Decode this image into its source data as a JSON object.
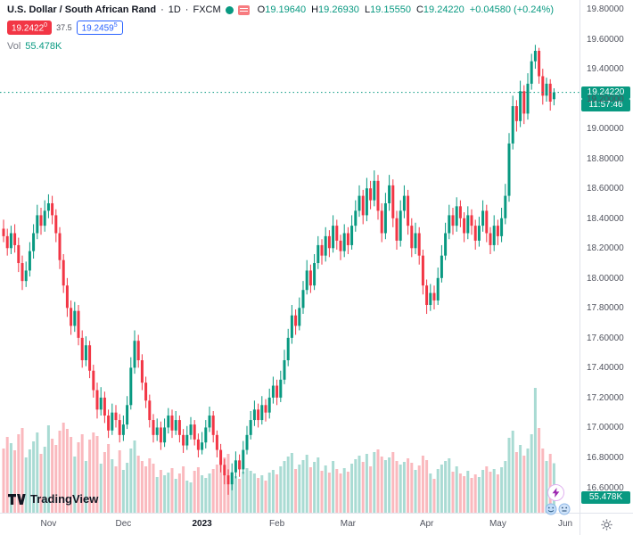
{
  "legend": {
    "symbol_title": "U.S. Dollar / South African Rand",
    "sep": "·",
    "interval": "1D",
    "exchange": "FXCM",
    "ohlc": {
      "o_key": "O",
      "o": "19.19640",
      "h_key": "H",
      "h": "19.26930",
      "l_key": "L",
      "l": "19.15550",
      "c_key": "C",
      "c": "19.24220",
      "change": "+0.04580 (+0.24%)"
    },
    "bid_main": "19.2422",
    "bid_sup": "0",
    "spread": "37.5",
    "ask_main": "19.2459",
    "ask_sup": "5",
    "vol_label": "Vol",
    "vol_value": "55.478K"
  },
  "badges": {
    "last_price": "19.24220",
    "countdown": "11:57:46",
    "volume": "55.478K"
  },
  "footer": {
    "logo_text": "TradingView"
  },
  "colors": {
    "up": "#089981",
    "down": "#f23645",
    "vol_opacity": 0.35,
    "last_line": "#089981",
    "badge_bg": "#089981",
    "bid_bg": "#f23645",
    "ask_blue": "#2962ff"
  },
  "price_axis": {
    "labels": [
      "19.80000",
      "19.60000",
      "19.40000",
      "19.20000",
      "19.00000",
      "18.80000",
      "18.60000",
      "18.40000",
      "18.20000",
      "18.00000",
      "17.80000",
      "17.60000",
      "17.40000",
      "17.20000",
      "17.00000",
      "16.80000",
      "16.60000"
    ]
  },
  "time_axis": {
    "ticks": [
      {
        "label": "Nov",
        "i": 12
      },
      {
        "label": "Dec",
        "i": 32
      },
      {
        "label": "2023",
        "i": 53,
        "year": true
      },
      {
        "label": "Feb",
        "i": 73
      },
      {
        "label": "Mar",
        "i": 92
      },
      {
        "label": "Apr",
        "i": 113
      },
      {
        "label": "May",
        "i": 132
      },
      {
        "label": "Jun",
        "i": 150
      }
    ]
  },
  "chart_data": {
    "type": "candlestick",
    "title": "U.S. Dollar / South African Rand",
    "interval": "1D",
    "exchange": "FXCM",
    "ylim": [
      16.43,
      19.86
    ],
    "last_close": 19.2422,
    "volume_unit": "K",
    "legend_position": "top-left",
    "candles_format": [
      "open",
      "high",
      "low",
      "close",
      "volume_K"
    ],
    "candles": [
      [
        18.33,
        18.39,
        18.24,
        18.28,
        72
      ],
      [
        18.28,
        18.33,
        18.15,
        18.2,
        85
      ],
      [
        18.2,
        18.35,
        18.16,
        18.3,
        78
      ],
      [
        18.3,
        18.36,
        18.17,
        18.22,
        70
      ],
      [
        18.22,
        18.27,
        18.04,
        18.1,
        88
      ],
      [
        18.1,
        18.15,
        17.92,
        17.98,
        95
      ],
      [
        17.98,
        18.11,
        17.94,
        18.05,
        62
      ],
      [
        18.05,
        18.24,
        18.01,
        18.18,
        71
      ],
      [
        18.18,
        18.36,
        18.13,
        18.3,
        80
      ],
      [
        18.3,
        18.49,
        18.26,
        18.42,
        90
      ],
      [
        18.42,
        18.47,
        18.29,
        18.35,
        66
      ],
      [
        18.35,
        18.52,
        18.31,
        18.45,
        74
      ],
      [
        18.45,
        18.56,
        18.4,
        18.5,
        98
      ],
      [
        18.5,
        18.55,
        18.36,
        18.42,
        83
      ],
      [
        18.42,
        18.46,
        18.24,
        18.3,
        76
      ],
      [
        18.3,
        18.34,
        18.06,
        18.12,
        92
      ],
      [
        18.12,
        18.16,
        17.9,
        17.95,
        101
      ],
      [
        17.95,
        18.0,
        17.74,
        17.8,
        94
      ],
      [
        17.8,
        17.85,
        17.62,
        17.68,
        85
      ],
      [
        17.68,
        17.84,
        17.64,
        17.78,
        63
      ],
      [
        17.78,
        17.82,
        17.55,
        17.6,
        79
      ],
      [
        17.6,
        17.65,
        17.4,
        17.45,
        88
      ],
      [
        17.45,
        17.61,
        17.41,
        17.55,
        58
      ],
      [
        17.55,
        17.58,
        17.33,
        17.38,
        82
      ],
      [
        17.38,
        17.42,
        17.2,
        17.25,
        90
      ],
      [
        17.25,
        17.3,
        17.06,
        17.12,
        86
      ],
      [
        17.12,
        17.27,
        17.08,
        17.2,
        55
      ],
      [
        17.2,
        17.24,
        17.03,
        17.08,
        68
      ],
      [
        17.08,
        17.12,
        16.93,
        16.98,
        77
      ],
      [
        16.98,
        17.16,
        16.95,
        17.1,
        60
      ],
      [
        17.1,
        17.15,
        17.0,
        17.05,
        52
      ],
      [
        17.05,
        17.09,
        16.9,
        16.95,
        70
      ],
      [
        16.95,
        17.08,
        16.91,
        17.02,
        48
      ],
      [
        17.02,
        17.21,
        16.99,
        17.15,
        56
      ],
      [
        17.15,
        17.47,
        17.12,
        17.4,
        72
      ],
      [
        17.4,
        17.65,
        17.36,
        17.58,
        81
      ],
      [
        17.58,
        17.62,
        17.4,
        17.45,
        64
      ],
      [
        17.45,
        17.49,
        17.25,
        17.3,
        58
      ],
      [
        17.3,
        17.34,
        17.13,
        17.18,
        52
      ],
      [
        17.18,
        17.22,
        17.0,
        17.05,
        61
      ],
      [
        17.05,
        17.09,
        16.9,
        16.95,
        55
      ],
      [
        16.95,
        17.06,
        16.91,
        17.0,
        40
      ],
      [
        17.0,
        17.04,
        16.85,
        16.9,
        48
      ],
      [
        16.9,
        17.06,
        16.87,
        17.0,
        42
      ],
      [
        17.0,
        17.13,
        16.96,
        17.08,
        45
      ],
      [
        17.08,
        17.12,
        16.93,
        16.98,
        50
      ],
      [
        16.98,
        17.11,
        16.95,
        17.05,
        38
      ],
      [
        17.05,
        17.08,
        16.9,
        16.95,
        44
      ],
      [
        16.95,
        16.99,
        16.83,
        16.88,
        52
      ],
      [
        16.88,
        17.01,
        16.85,
        16.95,
        36
      ],
      [
        16.95,
        17.07,
        16.92,
        17.02,
        34
      ],
      [
        17.02,
        17.05,
        16.88,
        16.92,
        47
      ],
      [
        16.92,
        16.96,
        16.8,
        16.85,
        51
      ],
      [
        16.85,
        16.97,
        16.82,
        16.9,
        42
      ],
      [
        16.9,
        17.05,
        16.86,
        17.0,
        39
      ],
      [
        17.0,
        17.14,
        16.97,
        17.08,
        44
      ],
      [
        17.08,
        17.11,
        16.9,
        16.95,
        49
      ],
      [
        16.95,
        16.98,
        16.8,
        16.85,
        54
      ],
      [
        16.85,
        16.89,
        16.7,
        16.75,
        58
      ],
      [
        16.75,
        16.79,
        16.62,
        16.68,
        62
      ],
      [
        16.68,
        16.72,
        16.55,
        16.62,
        66
      ],
      [
        16.62,
        16.76,
        16.58,
        16.7,
        45
      ],
      [
        16.7,
        16.84,
        16.66,
        16.78,
        41
      ],
      [
        16.78,
        16.82,
        16.67,
        16.72,
        38
      ],
      [
        16.72,
        16.91,
        16.69,
        16.85,
        46
      ],
      [
        16.85,
        17.01,
        16.82,
        16.95,
        50
      ],
      [
        16.95,
        17.11,
        16.92,
        17.05,
        47
      ],
      [
        17.05,
        17.18,
        17.01,
        17.12,
        44
      ],
      [
        17.12,
        17.16,
        17.0,
        17.05,
        39
      ],
      [
        17.05,
        17.21,
        17.02,
        17.15,
        42
      ],
      [
        17.15,
        17.19,
        17.04,
        17.1,
        36
      ],
      [
        17.1,
        17.26,
        17.06,
        17.2,
        45
      ],
      [
        17.2,
        17.34,
        17.16,
        17.28,
        48
      ],
      [
        17.28,
        17.32,
        17.15,
        17.2,
        43
      ],
      [
        17.2,
        17.38,
        17.17,
        17.32,
        52
      ],
      [
        17.32,
        17.52,
        17.29,
        17.45,
        58
      ],
      [
        17.45,
        17.66,
        17.41,
        17.6,
        63
      ],
      [
        17.6,
        17.82,
        17.56,
        17.75,
        67
      ],
      [
        17.75,
        17.79,
        17.62,
        17.68,
        49
      ],
      [
        17.68,
        17.87,
        17.65,
        17.8,
        54
      ],
      [
        17.8,
        17.98,
        17.76,
        17.92,
        59
      ],
      [
        17.92,
        18.12,
        17.89,
        18.05,
        65
      ],
      [
        18.05,
        18.09,
        17.9,
        17.95,
        51
      ],
      [
        17.95,
        18.16,
        17.92,
        18.1,
        57
      ],
      [
        18.1,
        18.28,
        18.06,
        18.22,
        62
      ],
      [
        18.22,
        18.26,
        18.09,
        18.15,
        47
      ],
      [
        18.15,
        18.34,
        18.11,
        18.28,
        53
      ],
      [
        18.28,
        18.32,
        18.14,
        18.2,
        45
      ],
      [
        18.2,
        18.42,
        18.17,
        18.35,
        58
      ],
      [
        18.35,
        18.39,
        18.19,
        18.25,
        49
      ],
      [
        18.25,
        18.29,
        18.12,
        18.18,
        44
      ],
      [
        18.18,
        18.36,
        18.14,
        18.3,
        50
      ],
      [
        18.3,
        18.34,
        18.16,
        18.22,
        46
      ],
      [
        18.22,
        18.42,
        18.19,
        18.35,
        55
      ],
      [
        18.35,
        18.52,
        18.31,
        18.45,
        60
      ],
      [
        18.45,
        18.62,
        18.41,
        18.55,
        64
      ],
      [
        18.55,
        18.59,
        18.36,
        18.42,
        57
      ],
      [
        18.42,
        18.67,
        18.38,
        18.6,
        66
      ],
      [
        18.6,
        18.65,
        18.46,
        18.52,
        52
      ],
      [
        18.52,
        18.72,
        18.48,
        18.65,
        68
      ],
      [
        18.65,
        18.69,
        18.39,
        18.45,
        71
      ],
      [
        18.45,
        18.5,
        18.24,
        18.3,
        63
      ],
      [
        18.3,
        18.57,
        18.26,
        18.5,
        59
      ],
      [
        18.5,
        18.69,
        18.45,
        18.62,
        62
      ],
      [
        18.62,
        18.66,
        18.34,
        18.4,
        68
      ],
      [
        18.4,
        18.45,
        18.19,
        18.25,
        58
      ],
      [
        18.25,
        18.52,
        18.21,
        18.45,
        54
      ],
      [
        18.45,
        18.62,
        18.4,
        18.55,
        57
      ],
      [
        18.55,
        18.59,
        18.29,
        18.35,
        61
      ],
      [
        18.35,
        18.4,
        18.14,
        18.2,
        56
      ],
      [
        18.2,
        18.37,
        18.16,
        18.3,
        48
      ],
      [
        18.3,
        18.34,
        18.09,
        18.15,
        53
      ],
      [
        18.15,
        18.19,
        17.89,
        17.95,
        64
      ],
      [
        17.95,
        17.99,
        17.76,
        17.82,
        59
      ],
      [
        17.82,
        17.96,
        17.78,
        17.9,
        44
      ],
      [
        17.9,
        17.95,
        17.79,
        17.85,
        38
      ],
      [
        17.85,
        18.07,
        17.82,
        18.0,
        49
      ],
      [
        18.0,
        18.22,
        17.97,
        18.15,
        54
      ],
      [
        18.15,
        18.37,
        18.12,
        18.3,
        58
      ],
      [
        18.3,
        18.49,
        18.26,
        18.42,
        61
      ],
      [
        18.42,
        18.47,
        18.29,
        18.35,
        46
      ],
      [
        18.35,
        18.54,
        18.31,
        18.48,
        52
      ],
      [
        18.48,
        18.52,
        18.34,
        18.4,
        44
      ],
      [
        18.4,
        18.44,
        18.24,
        18.3,
        41
      ],
      [
        18.3,
        18.48,
        18.26,
        18.42,
        47
      ],
      [
        18.42,
        18.46,
        18.29,
        18.35,
        39
      ],
      [
        18.35,
        18.39,
        18.19,
        18.25,
        43
      ],
      [
        18.25,
        18.41,
        18.21,
        18.35,
        40
      ],
      [
        18.35,
        18.52,
        18.31,
        18.45,
        48
      ],
      [
        18.45,
        18.49,
        18.24,
        18.3,
        52
      ],
      [
        18.3,
        18.34,
        18.16,
        18.22,
        46
      ],
      [
        18.22,
        18.42,
        18.18,
        18.35,
        49
      ],
      [
        18.35,
        18.39,
        18.22,
        18.28,
        43
      ],
      [
        18.28,
        18.47,
        18.24,
        18.4,
        51
      ],
      [
        18.4,
        18.63,
        18.36,
        18.55,
        58
      ],
      [
        18.55,
        18.97,
        18.51,
        18.9,
        84
      ],
      [
        18.9,
        19.22,
        18.86,
        19.15,
        92
      ],
      [
        19.15,
        19.19,
        18.98,
        19.05,
        68
      ],
      [
        19.05,
        19.32,
        19.01,
        19.25,
        76
      ],
      [
        19.25,
        19.29,
        19.03,
        19.1,
        64
      ],
      [
        19.1,
        19.37,
        19.06,
        19.3,
        72
      ],
      [
        19.3,
        19.5,
        19.26,
        19.45,
        88
      ],
      [
        19.45,
        19.56,
        19.4,
        19.52,
        140
      ],
      [
        19.52,
        19.54,
        19.3,
        19.35,
        95
      ],
      [
        19.35,
        19.4,
        19.16,
        19.22,
        72
      ],
      [
        19.22,
        19.34,
        19.18,
        19.3,
        58
      ],
      [
        19.3,
        19.33,
        19.12,
        19.18,
        66
      ],
      [
        19.1964,
        19.2693,
        19.1555,
        19.2422,
        55.478
      ]
    ]
  }
}
